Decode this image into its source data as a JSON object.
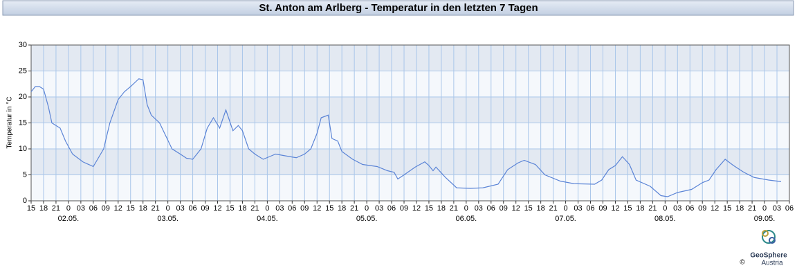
{
  "chart_data": {
    "type": "line",
    "title": "St. Anton am Arlberg - Temperatur in den letzten 7 Tagen",
    "y_label": "Temperatur in °C",
    "logo": {
      "name": "GeoSphere",
      "sub": "Austria",
      "copyright": "©"
    },
    "x": [
      0,
      1,
      2,
      3,
      4.2,
      5,
      7,
      8.3,
      10,
      12.5,
      15,
      17.5,
      19,
      21,
      22.5,
      24,
      26,
      27,
      28,
      29,
      31,
      32.5,
      34,
      36,
      37.5,
      39,
      41,
      42.5,
      44,
      45.5,
      47,
      48.7,
      50,
      51,
      52.5,
      54,
      56,
      57.5,
      59,
      62.5,
      64,
      66,
      67.5,
      69,
      70,
      71.7,
      72.6,
      74,
      75,
      77.6,
      80,
      83.5,
      86,
      87.6,
      88.5,
      90,
      92.7,
      95,
      96,
      97,
      97.7,
      100,
      102.7,
      106,
      109,
      112.7,
      115,
      117.5,
      119,
      121.7,
      124,
      127.7,
      131,
      136,
      137.7,
      139.4,
      141,
      142.7,
      144.4,
      146,
      149.4,
      152,
      153.6,
      156,
      159.4,
      162,
      163.6,
      165.3,
      167.5,
      169.5,
      172,
      174.5,
      178,
      181
    ],
    "series": [
      {
        "name": "Temperatur",
        "color": "#5b84d6",
        "values": [
          21,
          22,
          22,
          21.5,
          18,
          15,
          14,
          11.5,
          9,
          7.5,
          6.6,
          10,
          15,
          19.5,
          21,
          22,
          23.5,
          23.3,
          18.5,
          16.5,
          15,
          12.5,
          10,
          9,
          8.2,
          8,
          10,
          14,
          16,
          14,
          17.5,
          13.5,
          14.5,
          13.5,
          10,
          9,
          8,
          8.5,
          9,
          8.5,
          8.3,
          9,
          10,
          13,
          16,
          16.5,
          12,
          11.5,
          9.5,
          8,
          7,
          6.6,
          5.8,
          5.5,
          4.2,
          5,
          6.5,
          7.5,
          6.8,
          5.8,
          6.5,
          4.5,
          2.5,
          2.4,
          2.5,
          3.2,
          6,
          7.3,
          7.8,
          7,
          5,
          3.8,
          3.3,
          3.2,
          4,
          6,
          6.8,
          8.5,
          7,
          4,
          2.8,
          1,
          0.8,
          1.6,
          2.2,
          3.5,
          4,
          6,
          8,
          6.8,
          5.5,
          4.5,
          4,
          3.7
        ]
      }
    ],
    "xlim": [
      0,
      183
    ],
    "xticks": [
      {
        "value": 0,
        "label": "15"
      },
      {
        "value": 3,
        "label": "18"
      },
      {
        "value": 6,
        "label": "21"
      },
      {
        "value": 9,
        "label": "0"
      },
      {
        "value": 12,
        "label": "03"
      },
      {
        "value": 15,
        "label": "06"
      },
      {
        "value": 18,
        "label": "09"
      },
      {
        "value": 21,
        "label": "12"
      },
      {
        "value": 24,
        "label": "15"
      },
      {
        "value": 27,
        "label": "18"
      },
      {
        "value": 30,
        "label": "21"
      },
      {
        "value": 33,
        "label": "0"
      },
      {
        "value": 36,
        "label": "03"
      },
      {
        "value": 39,
        "label": "06"
      },
      {
        "value": 42,
        "label": "09"
      },
      {
        "value": 45,
        "label": "12"
      },
      {
        "value": 48,
        "label": "15"
      },
      {
        "value": 51,
        "label": "18"
      },
      {
        "value": 54,
        "label": "21"
      },
      {
        "value": 57,
        "label": "0"
      },
      {
        "value": 60,
        "label": "03"
      },
      {
        "value": 63,
        "label": "06"
      },
      {
        "value": 66,
        "label": "09"
      },
      {
        "value": 69,
        "label": "12"
      },
      {
        "value": 72,
        "label": "15"
      },
      {
        "value": 75,
        "label": "18"
      },
      {
        "value": 78,
        "label": "21"
      },
      {
        "value": 81,
        "label": "0"
      },
      {
        "value": 84,
        "label": "03"
      },
      {
        "value": 87,
        "label": "06"
      },
      {
        "value": 90,
        "label": "09"
      },
      {
        "value": 93,
        "label": "12"
      },
      {
        "value": 96,
        "label": "15"
      },
      {
        "value": 99,
        "label": "18"
      },
      {
        "value": 102,
        "label": "21"
      },
      {
        "value": 105,
        "label": "0"
      },
      {
        "value": 108,
        "label": "03"
      },
      {
        "value": 111,
        "label": "06"
      },
      {
        "value": 114,
        "label": "09"
      },
      {
        "value": 117,
        "label": "12"
      },
      {
        "value": 120,
        "label": "15"
      },
      {
        "value": 123,
        "label": "18"
      },
      {
        "value": 126,
        "label": "21"
      },
      {
        "value": 129,
        "label": "0"
      },
      {
        "value": 132,
        "label": "03"
      },
      {
        "value": 135,
        "label": "06"
      },
      {
        "value": 138,
        "label": "09"
      },
      {
        "value": 141,
        "label": "12"
      },
      {
        "value": 144,
        "label": "15"
      },
      {
        "value": 147,
        "label": "18"
      },
      {
        "value": 150,
        "label": "21"
      },
      {
        "value": 153,
        "label": "0"
      },
      {
        "value": 156,
        "label": "03"
      },
      {
        "value": 159,
        "label": "06"
      },
      {
        "value": 162,
        "label": "09"
      },
      {
        "value": 165,
        "label": "12"
      },
      {
        "value": 168,
        "label": "15"
      },
      {
        "value": 171,
        "label": "18"
      },
      {
        "value": 174,
        "label": "21"
      },
      {
        "value": 177,
        "label": "0"
      },
      {
        "value": 180,
        "label": "03"
      },
      {
        "value": 183,
        "label": "06"
      }
    ],
    "date_labels": [
      {
        "value": 9,
        "label": "02.05."
      },
      {
        "value": 33,
        "label": "03.05."
      },
      {
        "value": 57,
        "label": "04.05."
      },
      {
        "value": 81,
        "label": "05.05."
      },
      {
        "value": 105,
        "label": "06.05."
      },
      {
        "value": 129,
        "label": "07.05."
      },
      {
        "value": 153,
        "label": "08.05."
      },
      {
        "value": 177,
        "label": "09.05."
      }
    ],
    "ylim": [
      0,
      30
    ],
    "yticks": [
      0,
      5,
      10,
      15,
      20,
      25,
      30
    ],
    "grid": true
  }
}
